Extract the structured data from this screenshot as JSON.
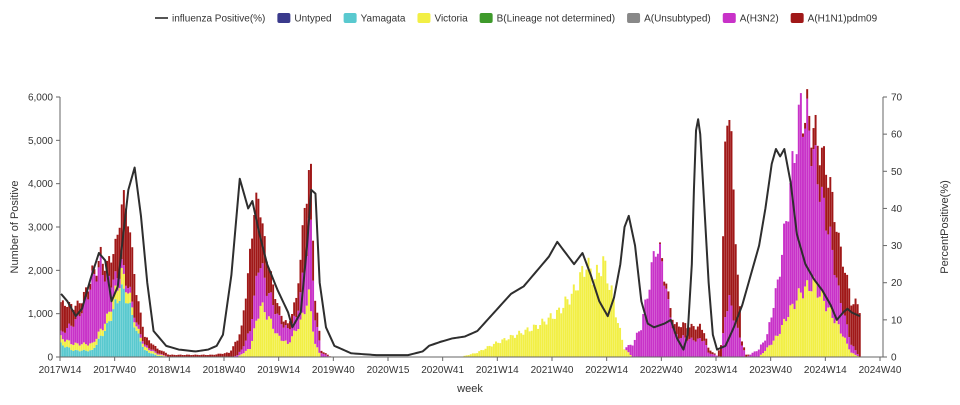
{
  "chart_data": {
    "type": "bar",
    "stacked": true,
    "title": "",
    "xlabel": "week",
    "ylabel": "Number of Positive",
    "ylabel_right": "PercentPositive(%)",
    "ylim": [
      0,
      6000
    ],
    "ylim_right": [
      0,
      70
    ],
    "yticks": [
      "0",
      "1,000",
      "2,000",
      "3,000",
      "4,000",
      "5,000",
      "6,000"
    ],
    "yticks_right": [
      "0",
      "10",
      "20",
      "30",
      "40",
      "50",
      "60",
      "70"
    ],
    "x_tick_labels": [
      "2017W14",
      "2017W40",
      "2018W14",
      "2018W40",
      "2019W14",
      "2019W40",
      "2020W15",
      "2020W41",
      "2021W14",
      "2021W40",
      "2022W14",
      "2022W40",
      "2023W14",
      "2023W40",
      "2024W14",
      "2024W40"
    ],
    "legend_position": "top",
    "line_series": {
      "name": "influenza Positive(%)",
      "color": "#555555"
    },
    "series": [
      {
        "name": "Untyped",
        "color": "#3a3a8c"
      },
      {
        "name": "Yamagata",
        "color": "#59c9cf"
      },
      {
        "name": "Victoria",
        "color": "#f2ef45"
      },
      {
        "name": "B(Lineage not determined)",
        "color": "#3e9a2b"
      },
      {
        "name": "A(Unsubtyped)",
        "color": "#888888"
      },
      {
        "name": "A(H3N2)",
        "color": "#c832c8"
      },
      {
        "name": "A(H1N1)pdm09",
        "color": "#a01818"
      }
    ],
    "series_profiles": {
      "Yamagata": [
        [
          0,
          300
        ],
        [
          6,
          150
        ],
        [
          15,
          150
        ],
        [
          22,
          700
        ],
        [
          26,
          1200
        ],
        [
          29,
          1550
        ],
        [
          32,
          1300
        ],
        [
          36,
          600
        ],
        [
          40,
          150
        ],
        [
          46,
          30
        ],
        [
          52,
          0
        ]
      ],
      "Victoria": [
        [
          0,
          150
        ],
        [
          20,
          150
        ],
        [
          29,
          350
        ],
        [
          36,
          100
        ],
        [
          52,
          0
        ],
        [
          84,
          0
        ],
        [
          90,
          200
        ],
        [
          95,
          1200
        ],
        [
          99,
          900
        ],
        [
          103,
          500
        ],
        [
          108,
          300
        ],
        [
          114,
          800
        ],
        [
          118,
          1400
        ],
        [
          121,
          300
        ],
        [
          124,
          0
        ],
        [
          190,
          0
        ],
        [
          198,
          100
        ],
        [
          206,
          300
        ],
        [
          216,
          500
        ],
        [
          226,
          700
        ],
        [
          236,
          1000
        ],
        [
          244,
          1500
        ],
        [
          250,
          2150
        ],
        [
          254,
          1800
        ],
        [
          258,
          2200
        ],
        [
          262,
          1500
        ],
        [
          265,
          800
        ],
        [
          268,
          200
        ],
        [
          272,
          0
        ],
        [
          332,
          0
        ],
        [
          336,
          200
        ],
        [
          341,
          500
        ],
        [
          346,
          1000
        ],
        [
          352,
          1500
        ],
        [
          358,
          1700
        ],
        [
          364,
          1200
        ],
        [
          370,
          700
        ],
        [
          376,
          100
        ],
        [
          380,
          0
        ]
      ],
      "A(H3N2)": [
        [
          0,
          100
        ],
        [
          8,
          600
        ],
        [
          12,
          1000
        ],
        [
          15,
          1500
        ],
        [
          19,
          1500
        ],
        [
          22,
          900
        ],
        [
          26,
          300
        ],
        [
          31,
          150
        ],
        [
          36,
          100
        ],
        [
          40,
          50
        ],
        [
          52,
          0
        ],
        [
          82,
          0
        ],
        [
          86,
          100
        ],
        [
          90,
          400
        ],
        [
          94,
          1100
        ],
        [
          98,
          600
        ],
        [
          102,
          500
        ],
        [
          106,
          350
        ],
        [
          112,
          300
        ],
        [
          116,
          1000
        ],
        [
          119,
          1900
        ],
        [
          121,
          600
        ],
        [
          124,
          100
        ],
        [
          128,
          0
        ],
        [
          268,
          0
        ],
        [
          272,
          300
        ],
        [
          276,
          700
        ],
        [
          280,
          1700
        ],
        [
          283,
          2600
        ],
        [
          286,
          2200
        ],
        [
          289,
          1200
        ],
        [
          292,
          500
        ],
        [
          300,
          400
        ],
        [
          306,
          400
        ],
        [
          308,
          100
        ],
        [
          314,
          0
        ],
        [
          316,
          1000
        ],
        [
          318,
          1300
        ],
        [
          322,
          600
        ],
        [
          326,
          0
        ],
        [
          336,
          300
        ],
        [
          341,
          1200
        ],
        [
          346,
          2500
        ],
        [
          350,
          3800
        ],
        [
          352,
          4200
        ],
        [
          355,
          3800
        ],
        [
          358,
          3000
        ],
        [
          362,
          2300
        ],
        [
          366,
          1700
        ],
        [
          370,
          800
        ],
        [
          376,
          200
        ],
        [
          380,
          0
        ]
      ],
      "A(H1N1)pdm09": [
        [
          0,
          700
        ],
        [
          8,
          300
        ],
        [
          16,
          100
        ],
        [
          22,
          300
        ],
        [
          27,
          900
        ],
        [
          30,
          1700
        ],
        [
          33,
          1400
        ],
        [
          36,
          700
        ],
        [
          40,
          200
        ],
        [
          46,
          100
        ],
        [
          52,
          50
        ],
        [
          72,
          50
        ],
        [
          80,
          100
        ],
        [
          86,
          500
        ],
        [
          90,
          1700
        ],
        [
          92,
          2100
        ],
        [
          96,
          1000
        ],
        [
          100,
          500
        ],
        [
          104,
          200
        ],
        [
          108,
          100
        ],
        [
          112,
          400
        ],
        [
          116,
          1300
        ],
        [
          119,
          1200
        ],
        [
          121,
          500
        ],
        [
          124,
          50
        ],
        [
          130,
          0
        ],
        [
          284,
          0
        ],
        [
          290,
          200
        ],
        [
          296,
          300
        ],
        [
          304,
          300
        ],
        [
          308,
          100
        ],
        [
          312,
          0
        ],
        [
          314,
          300
        ],
        [
          316,
          3800
        ],
        [
          317,
          4800
        ],
        [
          320,
          3000
        ],
        [
          322,
          1200
        ],
        [
          324,
          100
        ],
        [
          328,
          0
        ],
        [
          352,
          0
        ],
        [
          356,
          300
        ],
        [
          360,
          800
        ],
        [
          364,
          1200
        ],
        [
          370,
          1200
        ],
        [
          376,
          1000
        ],
        [
          380,
          1150
        ]
      ]
    },
    "line_profile": [
      [
        0,
        17
      ],
      [
        3,
        15
      ],
      [
        7,
        11
      ],
      [
        10,
        13
      ],
      [
        14,
        21
      ],
      [
        18,
        28
      ],
      [
        21,
        26
      ],
      [
        24,
        15
      ],
      [
        27,
        19
      ],
      [
        29,
        30
      ],
      [
        32,
        45
      ],
      [
        35,
        51
      ],
      [
        38,
        38
      ],
      [
        41,
        20
      ],
      [
        44,
        7
      ],
      [
        50,
        3
      ],
      [
        56,
        2
      ],
      [
        64,
        1.5
      ],
      [
        70,
        2
      ],
      [
        74,
        3
      ],
      [
        77,
        6
      ],
      [
        81,
        22
      ],
      [
        83,
        35
      ],
      [
        85,
        48
      ],
      [
        87,
        44
      ],
      [
        89,
        40
      ],
      [
        91,
        42
      ],
      [
        94,
        34
      ],
      [
        98,
        25
      ],
      [
        103,
        18
      ],
      [
        108,
        12
      ],
      [
        110,
        8
      ],
      [
        114,
        12
      ],
      [
        117,
        30
      ],
      [
        119,
        45
      ],
      [
        121,
        44
      ],
      [
        123,
        20
      ],
      [
        126,
        8
      ],
      [
        130,
        3
      ],
      [
        138,
        1
      ],
      [
        150,
        0.5
      ],
      [
        165,
        0.5
      ],
      [
        172,
        1.5
      ],
      [
        175,
        3
      ],
      [
        180,
        4
      ],
      [
        186,
        5
      ],
      [
        192,
        5.5
      ],
      [
        198,
        7
      ],
      [
        206,
        12
      ],
      [
        214,
        17
      ],
      [
        220,
        19
      ],
      [
        226,
        23
      ],
      [
        232,
        27
      ],
      [
        236,
        31
      ],
      [
        240,
        28
      ],
      [
        244,
        25
      ],
      [
        248,
        28
      ],
      [
        252,
        22
      ],
      [
        256,
        15
      ],
      [
        260,
        11
      ],
      [
        263,
        16
      ],
      [
        266,
        25
      ],
      [
        268,
        35
      ],
      [
        270,
        38
      ],
      [
        273,
        30
      ],
      [
        276,
        15
      ],
      [
        279,
        9
      ],
      [
        282,
        8
      ],
      [
        287,
        9
      ],
      [
        290,
        10
      ],
      [
        293,
        5
      ],
      [
        296,
        2
      ],
      [
        298,
        6
      ],
      [
        300,
        25
      ],
      [
        301,
        45
      ],
      [
        302,
        61
      ],
      [
        303,
        64
      ],
      [
        304,
        60
      ],
      [
        306,
        40
      ],
      [
        308,
        20
      ],
      [
        310,
        6
      ],
      [
        312,
        2
      ],
      [
        316,
        3
      ],
      [
        320,
        8
      ],
      [
        324,
        14
      ],
      [
        328,
        22
      ],
      [
        332,
        30
      ],
      [
        335,
        40
      ],
      [
        338,
        52
      ],
      [
        340,
        56
      ],
      [
        342,
        54
      ],
      [
        344,
        56
      ],
      [
        347,
        47
      ],
      [
        350,
        33
      ],
      [
        354,
        25
      ],
      [
        358,
        21
      ],
      [
        362,
        18
      ],
      [
        366,
        14
      ],
      [
        369,
        10
      ],
      [
        372,
        12
      ],
      [
        374,
        13
      ],
      [
        376,
        12
      ],
      [
        380,
        11
      ]
    ]
  },
  "legend": {
    "items": [
      {
        "label": "influenza Positive(%)",
        "kind": "line",
        "color": "#555555"
      },
      {
        "label": "Untyped",
        "kind": "box",
        "color": "#3a3a8c"
      },
      {
        "label": "Yamagata",
        "kind": "box",
        "color": "#59c9cf"
      },
      {
        "label": "Victoria",
        "kind": "box",
        "color": "#f2ef45"
      },
      {
        "label": "B(Lineage not determined)",
        "kind": "box",
        "color": "#3e9a2b"
      },
      {
        "label": "A(Unsubtyped)",
        "kind": "box",
        "color": "#888888"
      },
      {
        "label": "A(H3N2)",
        "kind": "box",
        "color": "#c832c8"
      },
      {
        "label": "A(H1N1)pdm09",
        "kind": "box",
        "color": "#a01818"
      }
    ]
  }
}
